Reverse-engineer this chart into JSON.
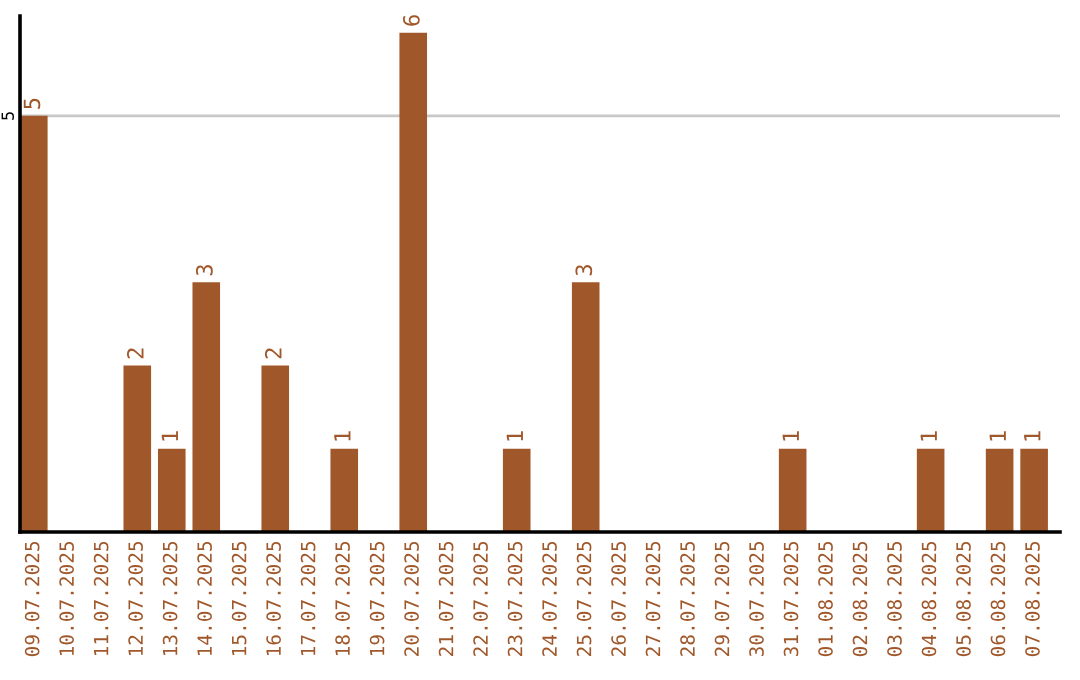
{
  "chart_data": {
    "type": "bar",
    "categories": [
      "09.07.2025",
      "10.07.2025",
      "11.07.2025",
      "12.07.2025",
      "13.07.2025",
      "14.07.2025",
      "15.07.2025",
      "16.07.2025",
      "17.07.2025",
      "18.07.2025",
      "19.07.2025",
      "20.07.2025",
      "21.07.2025",
      "22.07.2025",
      "23.07.2025",
      "24.07.2025",
      "25.07.2025",
      "26.07.2025",
      "27.07.2025",
      "28.07.2025",
      "29.07.2025",
      "30.07.2025",
      "31.07.2025",
      "01.08.2025",
      "02.08.2025",
      "03.08.2025",
      "04.08.2025",
      "05.08.2025",
      "06.08.2025",
      "07.08.2025"
    ],
    "values": [
      5,
      0,
      0,
      2,
      1,
      3,
      0,
      2,
      0,
      1,
      0,
      6,
      0,
      0,
      1,
      0,
      3,
      0,
      0,
      0,
      0,
      0,
      1,
      0,
      0,
      0,
      1,
      0,
      1,
      1
    ],
    "value_labels": [
      "5",
      null,
      null,
      "2",
      "1",
      "3",
      null,
      "2",
      null,
      "1",
      null,
      "6",
      null,
      null,
      "1",
      null,
      "3",
      null,
      null,
      null,
      null,
      null,
      "1",
      null,
      null,
      null,
      "1",
      null,
      "1",
      "1"
    ],
    "color": "#a0572a",
    "ylim": [
      0,
      6.2
    ],
    "yticks": [
      5
    ],
    "grid": "y"
  }
}
